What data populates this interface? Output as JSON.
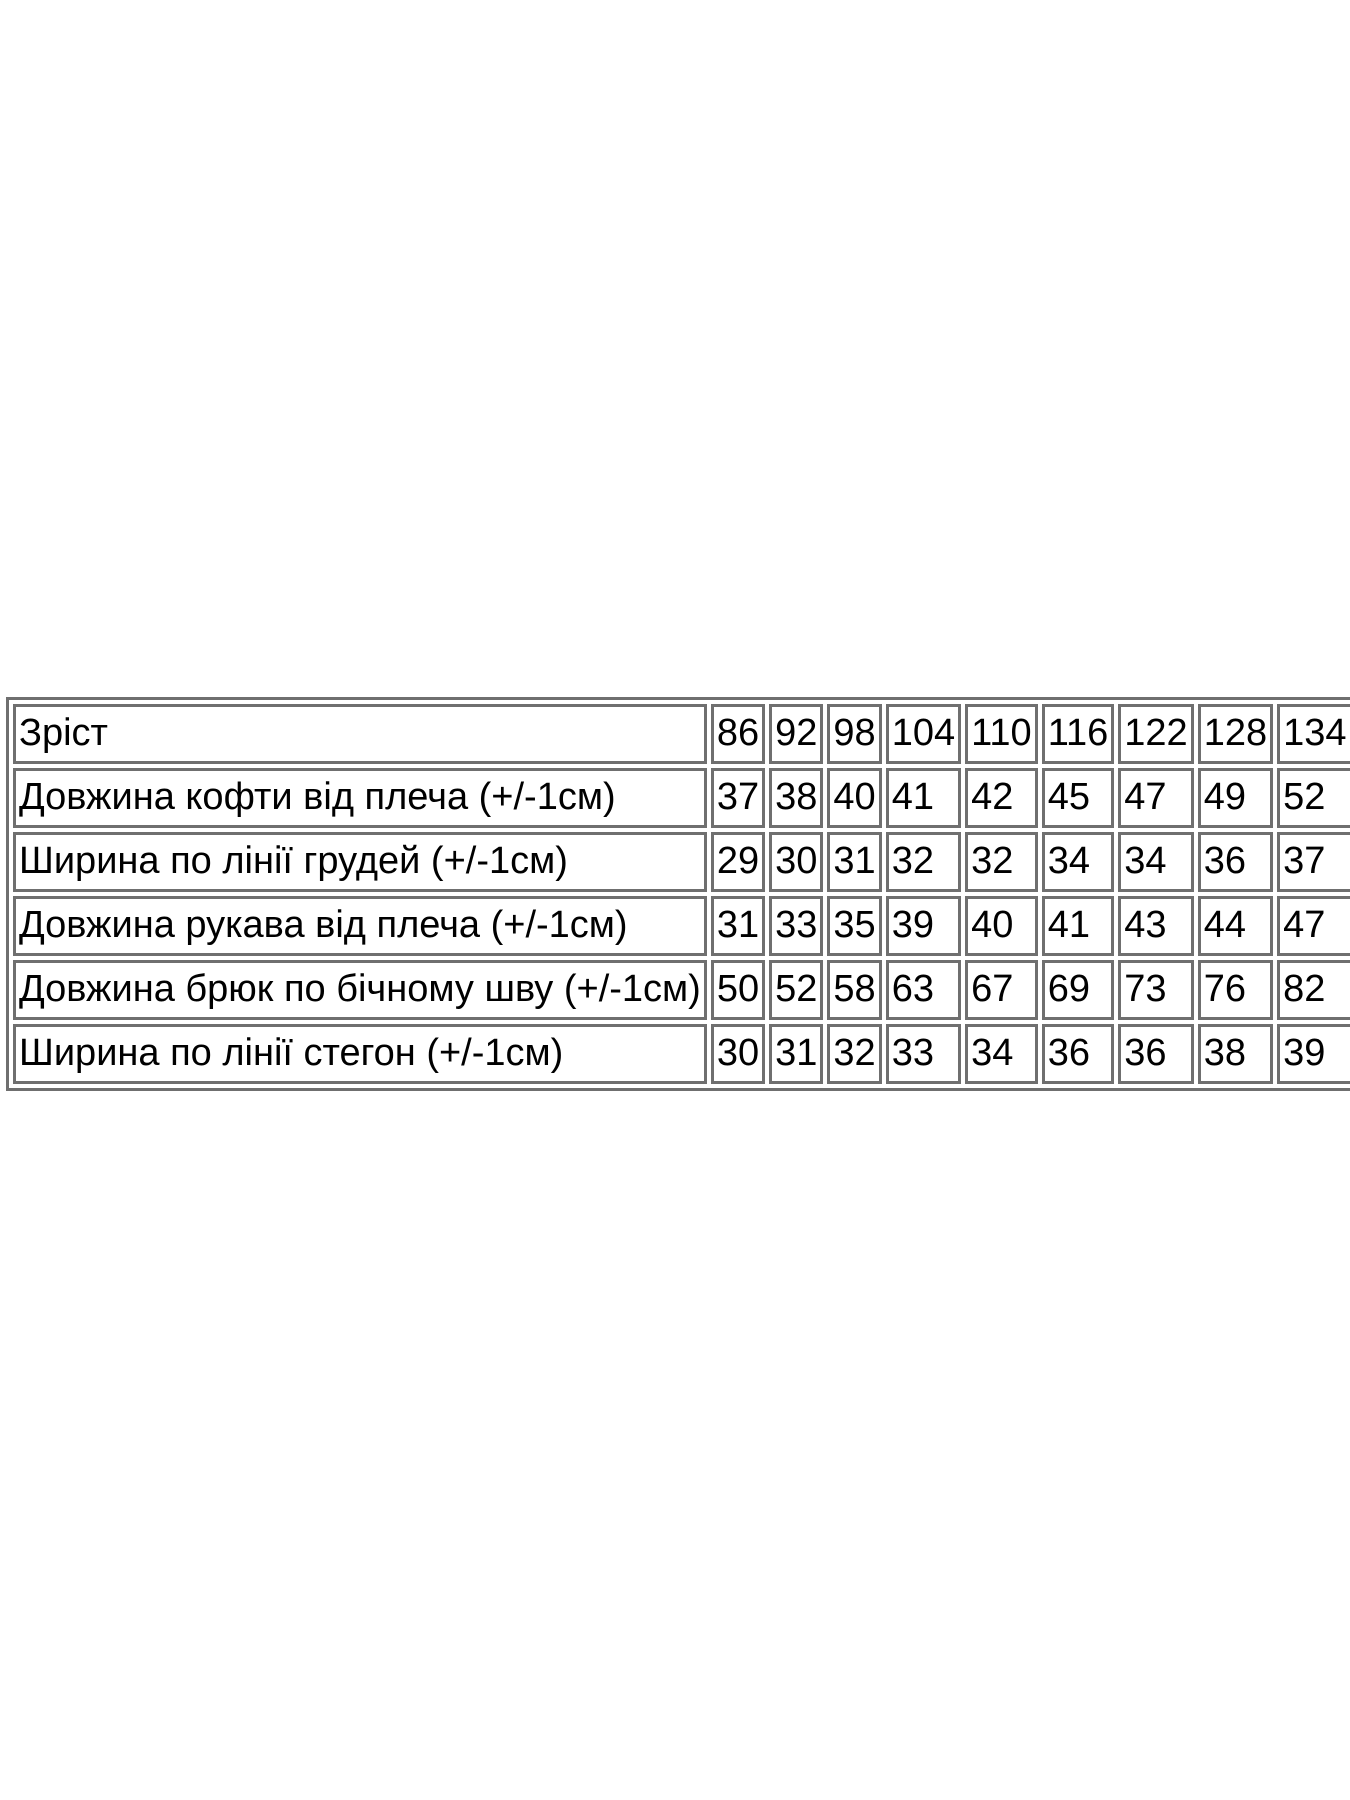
{
  "table": {
    "rows": [
      {
        "label": "Зріст",
        "values": [
          "86",
          "92",
          "98",
          "104",
          "110",
          "116",
          "122",
          "128",
          "134"
        ]
      },
      {
        "label": "Довжина кофти від плеча (+/-1см)",
        "values": [
          "37",
          "38",
          "40",
          "41",
          "42",
          "45",
          "47",
          "49",
          "52"
        ]
      },
      {
        "label": "Ширина по лінії грудей (+/-1см)",
        "values": [
          "29",
          "30",
          "31",
          "32",
          "32",
          "34",
          "34",
          "36",
          "37"
        ]
      },
      {
        "label": "Довжина рукава від плеча (+/-1см)",
        "values": [
          "31",
          "33",
          "35",
          "39",
          "40",
          "41",
          "43",
          "44",
          "47"
        ]
      },
      {
        "label": "Довжина брюк по бічному шву (+/-1см)",
        "values": [
          "50",
          "52",
          "58",
          "63",
          "67",
          "69",
          "73",
          "76",
          "82"
        ]
      },
      {
        "label": "Ширина по лінії стегон (+/-1см)",
        "values": [
          "30",
          "31",
          "32",
          "33",
          "34",
          "36",
          "36",
          "38",
          "39"
        ]
      }
    ],
    "colors": {
      "border": "#6f6f6f",
      "text": "#000000",
      "background": "#ffffff"
    }
  }
}
